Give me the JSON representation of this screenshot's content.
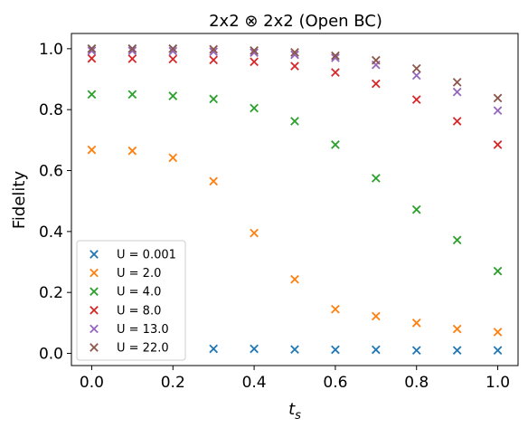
{
  "chart_data": {
    "type": "scatter",
    "title": "2x2 ⊗ 2x2 (Open BC)",
    "xlabel_main": "t",
    "xlabel_sub": "s",
    "ylabel": "Fidelity",
    "xlim": [
      -0.05,
      1.05
    ],
    "ylim": [
      -0.04,
      1.05
    ],
    "x_ticks": [
      0.0,
      0.2,
      0.4,
      0.6,
      0.8,
      1.0
    ],
    "x_tick_labels": [
      "0.0",
      "0.2",
      "0.4",
      "0.6",
      "0.8",
      "1.0"
    ],
    "y_ticks": [
      0.0,
      0.2,
      0.4,
      0.6,
      0.8,
      1.0
    ],
    "y_tick_labels": [
      "0.0",
      "0.2",
      "0.4",
      "0.6",
      "0.8",
      "1.0"
    ],
    "grid": false,
    "legend_position": "lower-left",
    "marker": "x",
    "x": [
      0.0,
      0.1,
      0.2,
      0.3,
      0.4,
      0.5,
      0.6,
      0.7,
      0.8,
      0.9,
      1.0
    ],
    "series": [
      {
        "name": "U = 0.001",
        "color": "#1f77b4",
        "values": [
          1.0,
          1.0,
          1.0,
          0.015,
          0.015,
          0.013,
          0.012,
          0.012,
          0.01,
          0.01,
          0.01
        ]
      },
      {
        "name": "U = 2.0",
        "color": "#ff7f0e",
        "values": [
          0.668,
          0.665,
          0.642,
          0.565,
          0.395,
          0.243,
          0.145,
          0.122,
          0.1,
          0.08,
          0.07
        ]
      },
      {
        "name": "U = 4.0",
        "color": "#2ca02c",
        "values": [
          0.85,
          0.85,
          0.845,
          0.835,
          0.805,
          0.762,
          0.685,
          0.575,
          0.472,
          0.372,
          0.27
        ]
      },
      {
        "name": "U = 8.0",
        "color": "#d62728",
        "values": [
          0.968,
          0.967,
          0.966,
          0.963,
          0.957,
          0.943,
          0.922,
          0.885,
          0.833,
          0.762,
          0.685
        ]
      },
      {
        "name": "U = 13.0",
        "color": "#9467bd",
        "values": [
          0.993,
          0.993,
          0.992,
          0.99,
          0.987,
          0.98,
          0.97,
          0.947,
          0.912,
          0.858,
          0.797
        ]
      },
      {
        "name": "U = 22.0",
        "color": "#8c564b",
        "values": [
          1.0,
          1.0,
          1.0,
          0.998,
          0.994,
          0.988,
          0.977,
          0.962,
          0.935,
          0.89,
          0.838
        ]
      }
    ]
  }
}
